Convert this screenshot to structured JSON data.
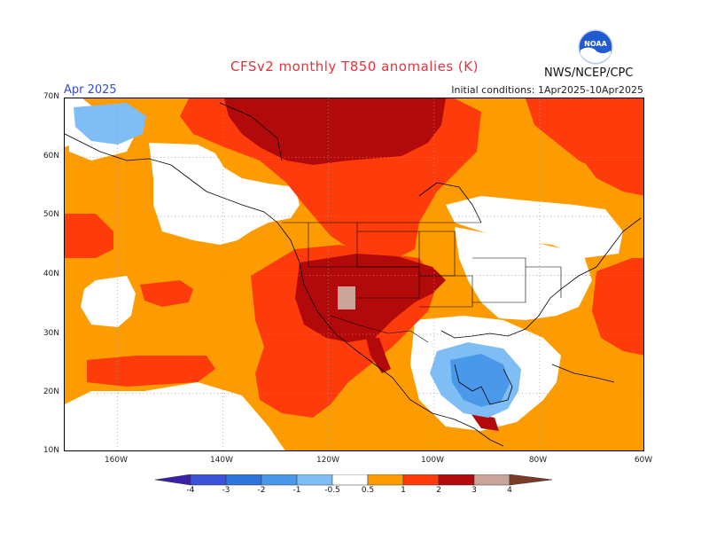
{
  "header": {
    "title": "CFSv2 monthly T850 anomalies (K)",
    "month": "Apr 2025",
    "initial_conditions": "Initial conditions: 1Apr2025-10Apr2025",
    "agency": "NWS/NCEP/CPC"
  },
  "logo": {
    "text": "NOAA",
    "icon": "noaa-logo-icon"
  },
  "axes": {
    "lat_labels": [
      "70N",
      "60N",
      "50N",
      "40N",
      "30N",
      "20N",
      "10N"
    ],
    "lon_labels": [
      "160W",
      "140W",
      "120W",
      "100W",
      "80W",
      "60W"
    ],
    "lat_range": [
      10,
      70
    ],
    "lon_range": [
      -170,
      -60
    ],
    "grid": true
  },
  "colorbar": {
    "labels": [
      "-4",
      "-3",
      "-2",
      "-1",
      "-0.5",
      "0.5",
      "1",
      "2",
      "3",
      "4"
    ],
    "colors": [
      "#3a1fa8",
      "#3c52d8",
      "#2f74dc",
      "#4a98ea",
      "#7fbdf5",
      "#ffffff",
      "#fd9c00",
      "#fe3c0b",
      "#b20a0a",
      "#c8a49a",
      "#7a3c24"
    ]
  },
  "colors": {
    "anomaly_0_5_to_1": "#fd9c00",
    "anomaly_1_to_2": "#fe3c0b",
    "anomaly_2_to_3": "#b20a0a",
    "anomaly_3_to_4": "#c8a49a",
    "anomaly_neg_0_5_to_1": "#7fbdf5",
    "anomaly_neg_1_to_2": "#4a98ea",
    "near_normal": "#ffffff"
  }
}
